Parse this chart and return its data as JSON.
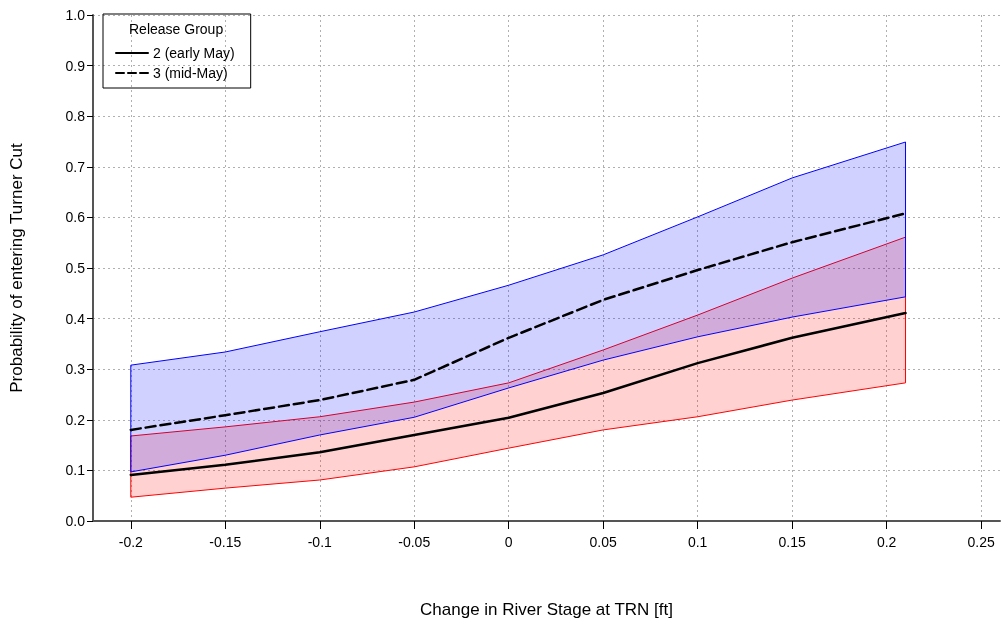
{
  "chart_data": {
    "type": "line",
    "xlabel": "Change in River Stage at TRN [ft]",
    "ylabel": "Probability of entering Turner Cut",
    "legend_title": "Release Group",
    "legend": "top left",
    "grid": true,
    "marker": "none",
    "x": [
      -0.2,
      -0.15,
      -0.1,
      -0.05,
      0,
      0.05,
      0.1,
      0.15,
      0.21
    ],
    "xlim": [
      -0.22,
      0.26
    ],
    "xticks": [
      -0.2,
      -0.15,
      -0.1,
      -0.05,
      0,
      0.05,
      0.1,
      0.15,
      0.2,
      0.25
    ],
    "ylim": [
      0,
      1
    ],
    "yticks": [
      {
        "value": 0,
        "label": "0.0"
      },
      0.1,
      0.2,
      0.3,
      0.4,
      0.5,
      0.6,
      0.7,
      0.8,
      0.9,
      {
        "value": 1,
        "label": "1.0"
      }
    ],
    "series": [
      {
        "name": "2 (early May)",
        "color": "#000000",
        "line_style": "solid",
        "values": [
          0.091,
          0.111,
          0.136,
          0.17,
          0.204,
          0.253,
          0.312,
          0.362,
          0.411
        ],
        "lower": [
          0.047,
          0.065,
          0.081,
          0.107,
          0.144,
          0.18,
          0.206,
          0.239,
          0.273
        ],
        "upper": [
          0.168,
          0.186,
          0.206,
          0.235,
          0.273,
          0.338,
          0.407,
          0.48,
          0.561
        ]
      },
      {
        "name": "3 (mid-May)",
        "color": "#000000",
        "line_style": "dashed",
        "values": [
          0.18,
          0.209,
          0.239,
          0.279,
          0.362,
          0.437,
          0.496,
          0.551,
          0.608
        ],
        "lower": [
          0.097,
          0.13,
          0.17,
          0.205,
          0.263,
          0.318,
          0.364,
          0.403,
          0.443
        ],
        "upper": [
          0.308,
          0.334,
          0.374,
          0.413,
          0.466,
          0.526,
          0.601,
          0.678,
          0.749
        ]
      }
    ]
  }
}
